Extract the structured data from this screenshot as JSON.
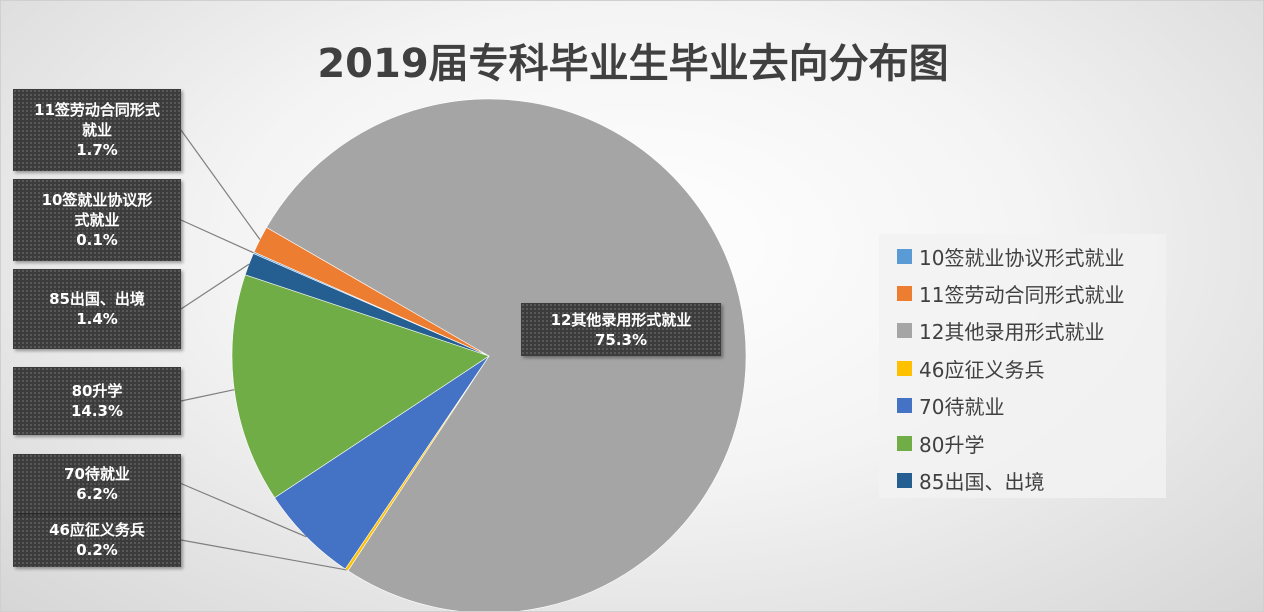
{
  "chart_data": {
    "type": "pie",
    "title": "2019届专科毕业生毕业去向分布图",
    "categories": [
      "10签就业协议形式就业",
      "11签劳动合同形式就业",
      "12其他录用形式就业",
      "46应征义务兵",
      "70待就业",
      "80升学",
      "85出国、出境"
    ],
    "values": [
      0.1,
      1.7,
      75.3,
      0.2,
      6.2,
      14.3,
      1.4
    ],
    "value_labels": [
      "0.1%",
      "1.7%",
      "75.3%",
      "0.2%",
      "6.2%",
      "14.3%",
      "1.4%"
    ],
    "colors": [
      "#5b9bd5",
      "#ed7d31",
      "#a5a5a5",
      "#ffc000",
      "#4472c4",
      "#70ad47",
      "#255e91"
    ],
    "legend": "right"
  }
}
